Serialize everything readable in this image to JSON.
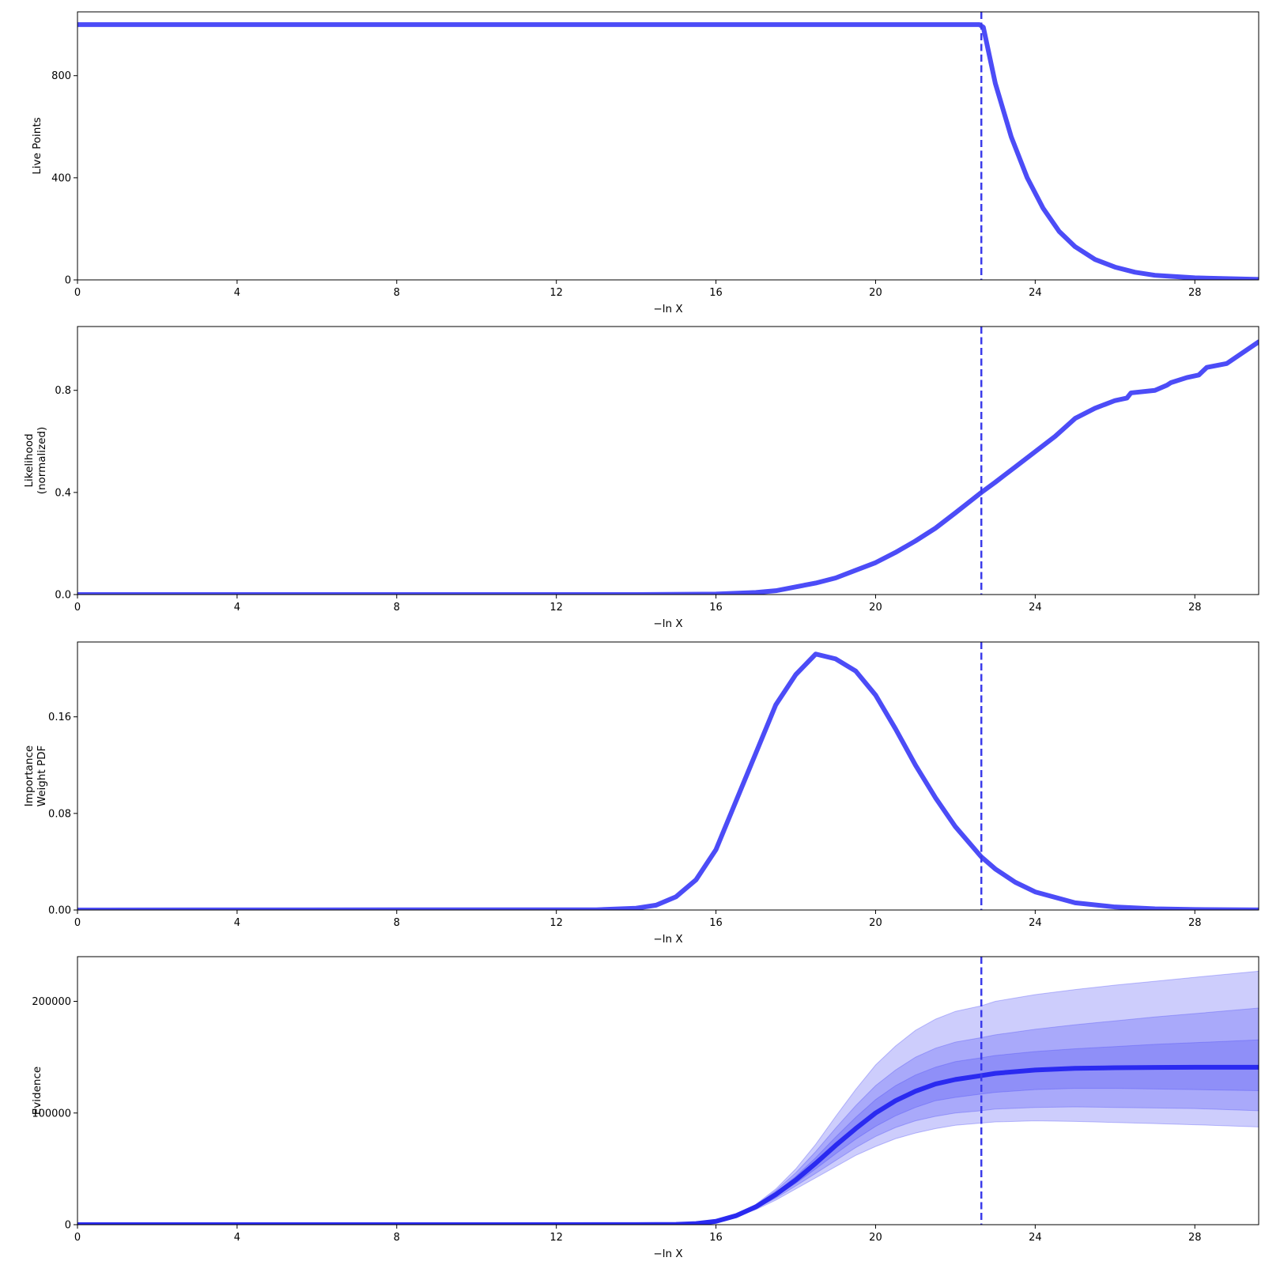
{
  "colors": {
    "line": "#4c4cf7",
    "evidence_line": "#2a2af0",
    "band": "#4d4df6",
    "marker": "#3b3bea"
  },
  "chart_data": [
    {
      "type": "line",
      "panel": "live-points",
      "ylabel": [
        "Live Points"
      ],
      "xlabel": "−ln X",
      "xlim": [
        0,
        29.6
      ],
      "ylim": [
        0,
        1050
      ],
      "x_ticks": [
        "0",
        "4",
        "8",
        "12",
        "16",
        "20",
        "24",
        "28"
      ],
      "y_ticks": [
        "0",
        "400",
        "800"
      ],
      "marker_x": 22.65,
      "series": [
        {
          "x": [
            0,
            22.6,
            22.7,
            23.0,
            23.4,
            23.8,
            24.2,
            24.6,
            25.0,
            25.5,
            26.0,
            26.5,
            27.0,
            28.0,
            29.6
          ],
          "y": [
            1000,
            1000,
            990,
            770,
            560,
            400,
            280,
            190,
            130,
            80,
            50,
            30,
            18,
            8,
            2
          ]
        }
      ]
    },
    {
      "type": "line",
      "panel": "likelihood",
      "ylabel": [
        "Likelihood",
        "(normalized)"
      ],
      "xlabel": "−ln X",
      "xlim": [
        0,
        29.6
      ],
      "ylim": [
        0,
        1.05
      ],
      "x_ticks": [
        "0",
        "4",
        "8",
        "12",
        "16",
        "20",
        "24",
        "28"
      ],
      "y_ticks": [
        "0.0",
        "0.4",
        "0.8"
      ],
      "marker_x": 22.65,
      "series": [
        {
          "x": [
            0,
            14,
            16,
            17,
            17.5,
            18,
            18.5,
            19,
            19.5,
            20,
            20.5,
            21,
            21.5,
            22,
            22.65,
            23,
            23.5,
            24,
            24.5,
            25,
            25.5,
            26,
            26.3,
            26.4,
            27,
            27.3,
            27.4,
            27.8,
            28.1,
            28.3,
            28.8,
            29.6
          ],
          "y": [
            0,
            0,
            0.002,
            0.008,
            0.015,
            0.03,
            0.045,
            0.065,
            0.095,
            0.125,
            0.165,
            0.21,
            0.26,
            0.32,
            0.4,
            0.44,
            0.5,
            0.56,
            0.62,
            0.69,
            0.73,
            0.76,
            0.77,
            0.79,
            0.8,
            0.82,
            0.83,
            0.85,
            0.86,
            0.89,
            0.905,
            0.99
          ]
        }
      ]
    },
    {
      "type": "line",
      "panel": "importance-weight",
      "ylabel": [
        "Importance",
        "Weight PDF"
      ],
      "xlabel": "−ln X",
      "xlim": [
        0,
        29.6
      ],
      "ylim": [
        0,
        0.222
      ],
      "x_ticks": [
        "0",
        "4",
        "8",
        "12",
        "16",
        "20",
        "24",
        "28"
      ],
      "y_ticks": [
        "0.00",
        "0.08",
        "0.16"
      ],
      "marker_x": 22.65,
      "series": [
        {
          "x": [
            0,
            13,
            14,
            14.5,
            15,
            15.5,
            16,
            16.5,
            17,
            17.5,
            18,
            18.5,
            19,
            19.5,
            20,
            20.5,
            21,
            21.5,
            22,
            22.65,
            23,
            23.5,
            24,
            25,
            26,
            27,
            28,
            29.6
          ],
          "y": [
            0,
            0.0002,
            0.0015,
            0.004,
            0.011,
            0.025,
            0.05,
            0.09,
            0.13,
            0.17,
            0.195,
            0.212,
            0.208,
            0.198,
            0.178,
            0.15,
            0.12,
            0.093,
            0.069,
            0.044,
            0.034,
            0.023,
            0.015,
            0.006,
            0.0025,
            0.001,
            0.0004,
            0.0001
          ]
        }
      ]
    },
    {
      "type": "area",
      "panel": "evidence",
      "ylabel": [
        "Evidence"
      ],
      "xlabel": "−ln X",
      "xlim": [
        0,
        29.6
      ],
      "ylim": [
        0,
        240000
      ],
      "x_ticks": [
        "0",
        "4",
        "8",
        "12",
        "16",
        "20",
        "24",
        "28"
      ],
      "y_ticks": [
        "0",
        "100000",
        "200000"
      ],
      "marker_x": 22.65,
      "x": [
        0,
        14,
        15,
        15.5,
        16,
        16.5,
        17,
        17.5,
        18,
        18.5,
        19,
        19.5,
        20,
        20.5,
        21,
        21.5,
        22,
        22.65,
        23,
        24,
        25,
        26,
        27,
        28,
        29.6
      ],
      "median": [
        0,
        50,
        300,
        1000,
        3000,
        8000,
        16000,
        27000,
        40000,
        55000,
        71000,
        86000,
        100000,
        111000,
        119500,
        126000,
        130000,
        133500,
        135500,
        138500,
        140000,
        140500,
        140800,
        141000,
        141000
      ],
      "bands": [
        {
          "name": "3-sigma",
          "upper": [
            0,
            60,
            330,
            1100,
            3300,
            8900,
            18200,
            32000,
            50000,
            72000,
            97000,
            121000,
            143000,
            160000,
            174000,
            184000,
            191000,
            196000,
            200000,
            206000,
            210500,
            214500,
            218000,
            221500,
            227000
          ],
          "lower": [
            0,
            40,
            270,
            900,
            2700,
            7000,
            13500,
            22000,
            32000,
            42000,
            52000,
            62000,
            70000,
            77000,
            82000,
            86000,
            89000,
            91000,
            92000,
            93000,
            92500,
            91500,
            90500,
            89500,
            87500
          ]
        },
        {
          "name": "2-sigma",
          "upper": [
            0,
            57,
            320,
            1070,
            3200,
            8600,
            17500,
            30500,
            46500,
            65500,
            86500,
            106500,
            124500,
            138500,
            150000,
            158000,
            163500,
            167500,
            170000,
            175000,
            179000,
            182500,
            186000,
            189000,
            194000
          ],
          "lower": [
            0,
            43,
            280,
            930,
            2800,
            7300,
            14300,
            23800,
            34700,
            46000,
            57500,
            69000,
            79000,
            87000,
            93000,
            97000,
            100000,
            102000,
            103500,
            105000,
            105500,
            105000,
            104500,
            104000,
            102000
          ]
        },
        {
          "name": "1-sigma",
          "upper": [
            0,
            53,
            310,
            1030,
            3100,
            8300,
            16800,
            28800,
            43300,
            60000,
            78500,
            96000,
            112000,
            124500,
            134000,
            141000,
            146000,
            149500,
            151500,
            155000,
            157500,
            159500,
            161500,
            163000,
            165500
          ],
          "lower": [
            0,
            47,
            290,
            970,
            2900,
            7700,
            15200,
            25300,
            37000,
            50000,
            63500,
            76500,
            88000,
            97500,
            105000,
            111000,
            114000,
            117000,
            118500,
            121000,
            122000,
            122000,
            121500,
            121000,
            120000
          ]
        }
      ]
    }
  ]
}
